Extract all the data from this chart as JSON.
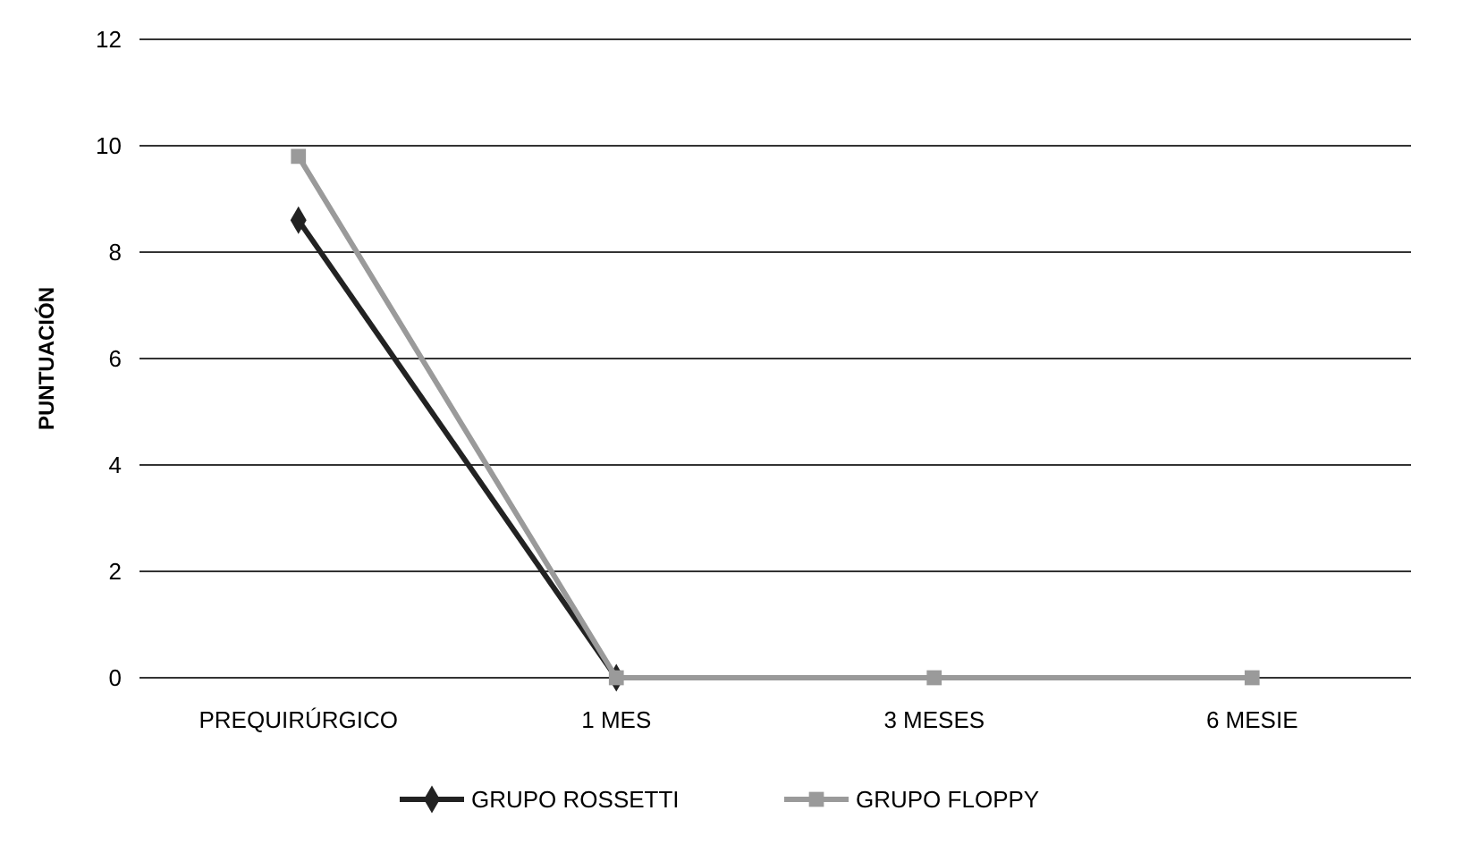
{
  "chart_data": {
    "type": "line",
    "ylabel": "PUNTUACIÓN",
    "categories": [
      "PREQUIRÚRGICO",
      "1 MES",
      "3 MESES",
      "6 MESIE"
    ],
    "series": [
      {
        "name": "GRUPO ROSSETTI",
        "color": "#222222",
        "values": [
          8.6,
          0,
          null,
          null
        ],
        "marker": "diamond"
      },
      {
        "name": "GRUPO FLOPPY",
        "color": "#9a9a9a",
        "values": [
          9.8,
          0,
          0,
          0
        ],
        "marker": "square"
      }
    ],
    "ylim": [
      0,
      12
    ],
    "yticks": [
      0,
      2,
      4,
      6,
      8,
      10,
      12
    ],
    "grid": "y",
    "legend": "bottom"
  }
}
